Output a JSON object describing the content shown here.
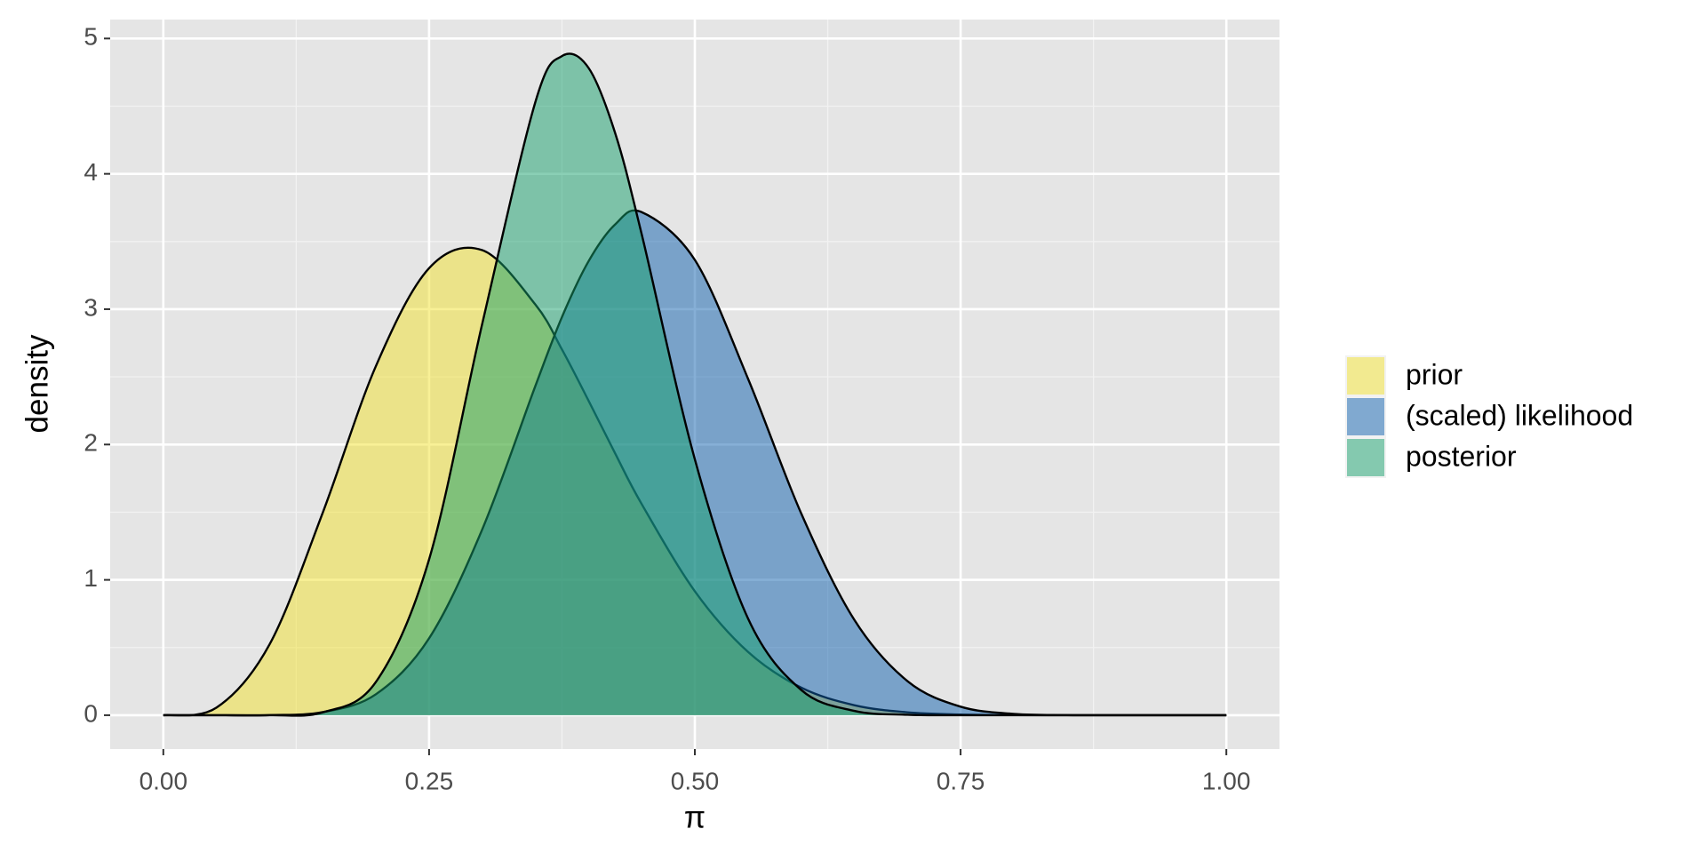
{
  "chart_data": {
    "type": "area",
    "x_label": "π",
    "y_label": "density",
    "x": [
      0,
      0.05,
      0.1,
      0.15,
      0.2,
      0.25,
      0.3,
      0.35,
      0.375,
      0.4,
      0.425,
      0.45,
      0.5,
      0.55,
      0.6,
      0.65,
      0.7,
      0.75,
      0.8,
      0.85,
      0.9,
      0.95,
      1
    ],
    "series": [
      {
        "name": "prior",
        "color": "#f2e22e",
        "values": [
          0,
          0.056,
          0.524,
          1.497,
          2.58,
          3.303,
          3.436,
          3.034,
          2.702,
          2.324,
          1.935,
          1.56,
          0.916,
          0.468,
          0.204,
          0.074,
          0.021,
          0.005,
          0.001,
          0,
          0,
          0,
          0
        ]
      },
      {
        "name": "(scaled) likelihood",
        "color": "#0e5fad",
        "values": [
          0,
          0,
          0.001,
          0.023,
          0.155,
          0.568,
          1.373,
          2.433,
          2.942,
          3.354,
          3.626,
          3.717,
          3.364,
          2.487,
          1.492,
          0.705,
          0.252,
          0.063,
          0.01,
          0.001,
          0,
          0,
          0
        ]
      },
      {
        "name": "posterior",
        "color": "#16a06c",
        "values": [
          0,
          0,
          0,
          0.021,
          0.246,
          1.151,
          2.892,
          4.531,
          4.87,
          4.783,
          4.302,
          3.554,
          1.891,
          0.715,
          0.187,
          0.032,
          0.003,
          0,
          0,
          0,
          0,
          0,
          0
        ]
      }
    ],
    "fill_opacity": 0.5,
    "xlim": [
      -0.05,
      1.05
    ],
    "xticks": [
      {
        "value": 0,
        "label": "0.00"
      },
      0.25,
      {
        "value": 0.5,
        "label": "0.50"
      },
      0.75,
      {
        "value": 1,
        "label": "1.00"
      }
    ],
    "minor_xticks": [
      0.125,
      0.375,
      0.625,
      0.875
    ],
    "ylim": [
      -0.25,
      5.14
    ],
    "yticks": [
      0,
      1,
      2,
      3,
      4,
      5
    ],
    "minor_yticks": [
      0.5,
      1.5,
      2.5,
      3.5,
      4.5
    ],
    "grid": true,
    "legend": "right"
  }
}
